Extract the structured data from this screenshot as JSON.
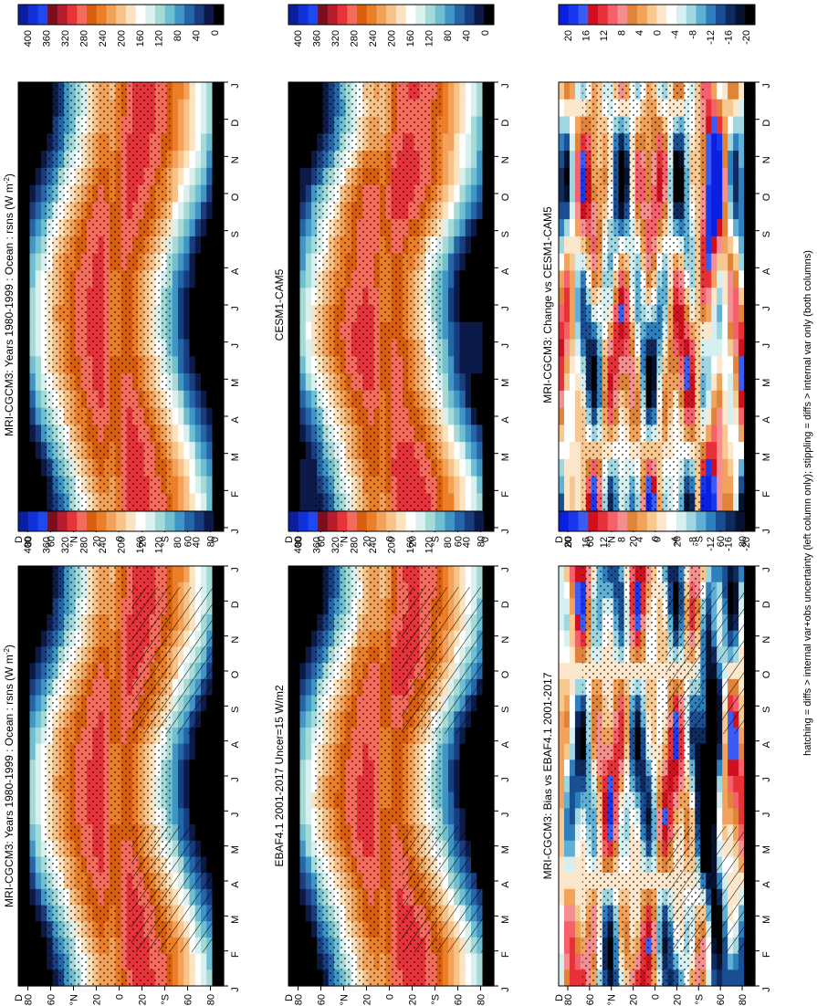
{
  "footnote": "hatching = diffs > internal var+obs uncertainty (left column only); stippling = diffs > internal var only (both columns)",
  "months": [
    "J",
    "F",
    "M",
    "A",
    "M",
    "J",
    "J",
    "A",
    "S",
    "O",
    "N",
    "D",
    "J"
  ],
  "lat_ticks": [
    "80",
    "60",
    "°N",
    "20",
    "0",
    "20",
    "°S",
    "60",
    "80"
  ],
  "lat_top_label": "D",
  "colorbar_abs": {
    "labels": [
      "400",
      "360",
      "320",
      "280",
      "240",
      "200",
      "160",
      "120",
      "80",
      "40",
      "0"
    ],
    "colors": [
      "#0a1f9e",
      "#1030d8",
      "#1d4af0",
      "#7b0f1e",
      "#b71c2c",
      "#e8333b",
      "#f56b5c",
      "#d95f0e",
      "#ea7f28",
      "#f2a25a",
      "#f6c48b",
      "#fbe3bf",
      "#ffffff",
      "#d9f0ef",
      "#a6dad7",
      "#6fbfd0",
      "#3f96c4",
      "#2466a8",
      "#193d7e",
      "#0b1a48",
      "#000000"
    ]
  },
  "colorbar_diff": {
    "labels": [
      "20",
      "16",
      "12",
      "8",
      "4",
      "0",
      "-4",
      "-8",
      "-12",
      "-16",
      "-20"
    ],
    "colors": [
      "#0a1fe0",
      "#1838f0",
      "#3a5cf5",
      "#d10f1f",
      "#e83038",
      "#f5606a",
      "#f58f8f",
      "#e0843a",
      "#f2a25a",
      "#f7c890",
      "#fde7cc",
      "#ffffff",
      "#d6f0f2",
      "#9fd6e0",
      "#5fb0d4",
      "#2e7fbd",
      "#1b4f94",
      "#0e2a5e",
      "#061232",
      "#000000"
    ]
  },
  "panels": [
    {
      "id": "mri-clim",
      "title": "MRI-CGCM3: Years 1980-1999 : Ocean : rsns (W m-2)",
      "title_text": "MRI-CGCM3: Years 1980-1999 : Ocean : rsns (W m",
      "unit_sup": "-2",
      "unit_end": ")",
      "kind": "abs",
      "hatched": true
    },
    {
      "id": "mri-clim-2",
      "title": "MRI-CGCM3: Years 1980-1999 : Ocean : rsns (W m-2)",
      "title_text": "MRI-CGCM3: Years 1980-1999 : Ocean : rsns (W m",
      "unit_sup": "-2",
      "unit_end": ")",
      "kind": "abs",
      "hatched": false
    },
    {
      "id": "ebaf",
      "title": "EBAF4.1 2001-2017 Uncer=15 W/m2",
      "title_text": "EBAF4.1 2001-2017 Uncer=15 W/m2",
      "kind": "abs",
      "hatched": true
    },
    {
      "id": "cesm",
      "title": "CESM1-CAM5",
      "title_text": "CESM1-CAM5",
      "kind": "abs",
      "hatched": false
    },
    {
      "id": "bias",
      "title": "MRI-CGCM3: Bias vs EBAF4.1 2001-2017",
      "title_text": "MRI-CGCM3: Bias vs EBAF4.1 2001-2017",
      "kind": "diff",
      "hatched": true
    },
    {
      "id": "change",
      "title": "MRI-CGCM3: Change vs CESM1-CAM5",
      "title_text": "MRI-CGCM3: Change vs CESM1-CAM5",
      "kind": "diff",
      "hatched": false
    }
  ],
  "chart_data": {
    "type": "heatmap",
    "title": "",
    "x_axis": {
      "label": "",
      "ticks": [
        "J",
        "F",
        "M",
        "A",
        "M",
        "J",
        "J",
        "A",
        "S",
        "O",
        "N",
        "D",
        "J"
      ]
    },
    "y_axis": {
      "label": "",
      "ticks": [
        "80",
        "60",
        "°N",
        "20",
        "0",
        "20",
        "°S",
        "60",
        "80"
      ]
    },
    "panels": [
      "MRI-CGCM3: Years 1980-1999 : Ocean : rsns (W m-2)",
      "MRI-CGCM3: Years 1980-1999 : Ocean : rsns (W m-2)",
      "EBAF4.1 2001-2017 Uncer=15 W/m2",
      "CESM1-CAM5",
      "MRI-CGCM3: Bias vs EBAF4.1 2001-2017",
      "MRI-CGCM3: Change vs CESM1-CAM5"
    ],
    "abs_scale": [
      0,
      400
    ],
    "diff_scale": [
      -20,
      20
    ]
  }
}
